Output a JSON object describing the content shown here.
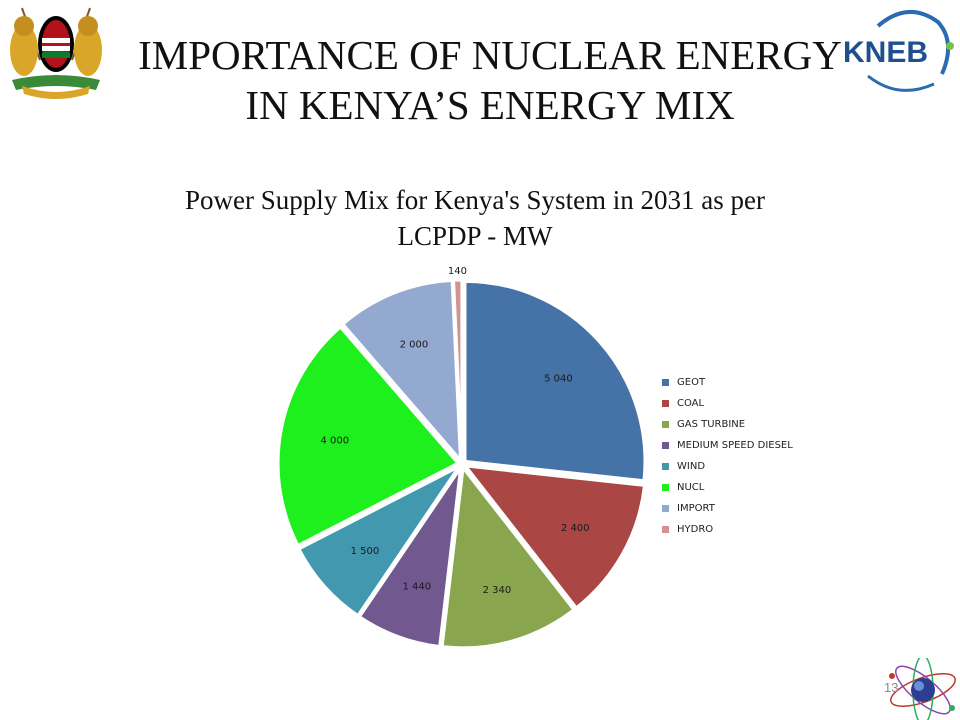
{
  "header": {
    "title_line1": "IMPORTANCE OF NUCLEAR ENERGY",
    "title_line2": "IN KENYA’S ENERGY MIX",
    "right_logo_text": "KNEB",
    "left_logo_motto": "HARAMBEE"
  },
  "footer": {
    "page_number": "13"
  },
  "chart_data": {
    "type": "pie",
    "title_line1": "Power Supply Mix for Kenya's  System in 2031 as per",
    "title_line2": "LCPDP - MW",
    "legend_position": "right",
    "categories": [
      "GEOT",
      "COAL",
      "GAS TURBINE",
      "MEDIUM SPEED DIESEL",
      "WIND",
      "NUCL",
      "IMPORT",
      "HYDRO"
    ],
    "values": [
      5040,
      2400,
      2340,
      1440,
      1500,
      4000,
      2000,
      140
    ],
    "data_labels": [
      "5 040",
      "2 400",
      "2 340",
      "1 440",
      "1 500",
      "4 000",
      "2 000",
      "140"
    ],
    "colors": [
      "#4572A7",
      "#AA4643",
      "#89A54E",
      "#71588F",
      "#4198AF",
      "#1EF01E",
      "#93A9CF",
      "#D19392"
    ]
  }
}
